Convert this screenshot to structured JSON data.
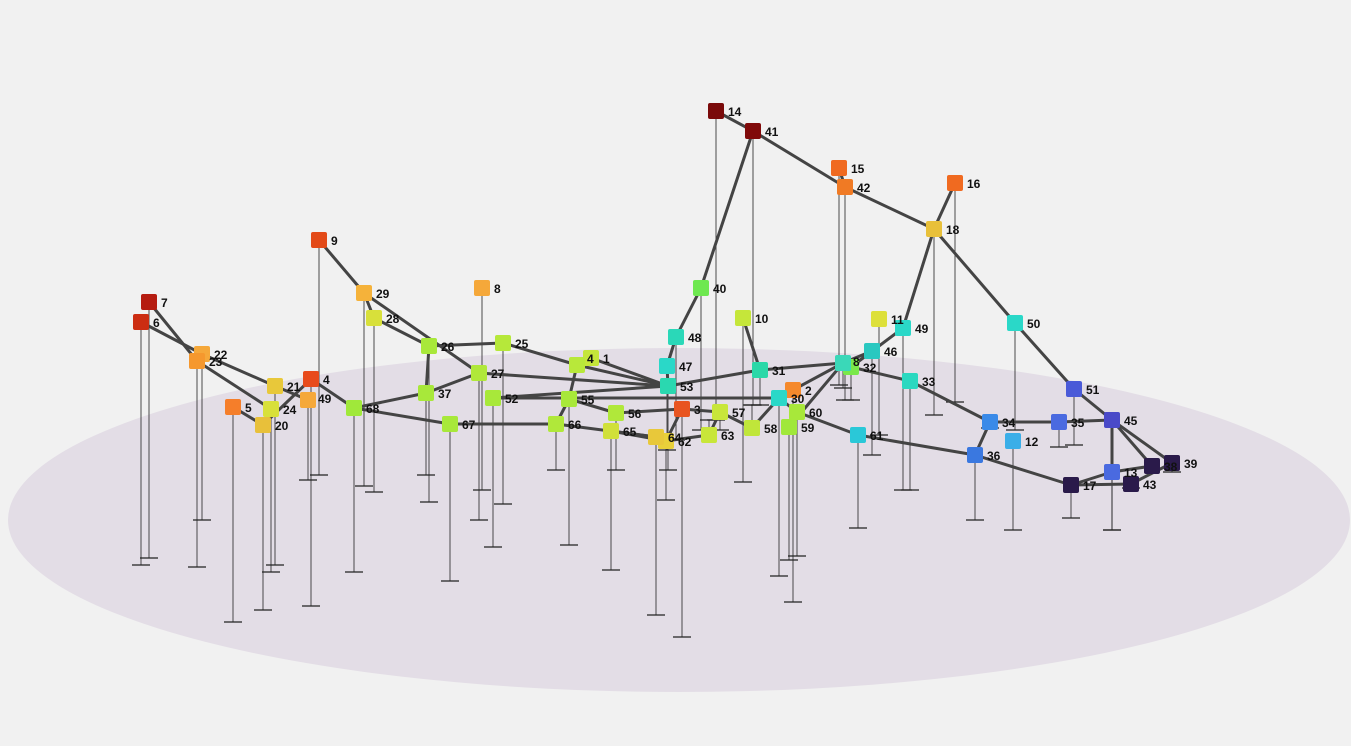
{
  "graph": {
    "nodes": [
      {
        "id": "1",
        "color": "#c5e63a",
        "drop": "false"
      },
      {
        "id": "2",
        "color": "#f5892c",
        "drop": "true"
      },
      {
        "id": "3",
        "color": "#e85420",
        "drop": "true"
      },
      {
        "id": "4",
        "color": "#e84b1c",
        "drop": "true"
      },
      {
        "id": "5",
        "color": "#f57e2a",
        "drop": "true"
      },
      {
        "id": "6",
        "color": "#cc2d12",
        "drop": "true"
      },
      {
        "id": "7",
        "color": "#b51c10",
        "drop": "true"
      },
      {
        "id": "8",
        "color": "#f5a83a",
        "drop": "true"
      },
      {
        "id": "9",
        "color": "#e34a18",
        "drop": "true"
      },
      {
        "id": "10",
        "color": "#c5e63a",
        "drop": "true"
      },
      {
        "id": "11",
        "color": "#dde03a",
        "drop": "true"
      },
      {
        "id": "12",
        "color": "#3aaee8",
        "drop": "true"
      },
      {
        "id": "13",
        "color": "#4a6ae0",
        "drop": "true"
      },
      {
        "id": "14",
        "color": "#7a0a0a",
        "drop": "true"
      },
      {
        "id": "15",
        "color": "#f06a20",
        "drop": "true"
      },
      {
        "id": "16",
        "color": "#f06a20",
        "drop": "true"
      },
      {
        "id": "17",
        "color": "#2a1a4a",
        "drop": "true"
      },
      {
        "id": "18",
        "color": "#e8c03a",
        "drop": "true"
      },
      {
        "id": "20",
        "color": "#e8c03a",
        "drop": "true"
      },
      {
        "id": "21",
        "color": "#e8c83a",
        "drop": "true"
      },
      {
        "id": "22",
        "color": "#f5a83a",
        "drop": "true"
      },
      {
        "id": "23",
        "color": "#f5982e",
        "drop": "true"
      },
      {
        "id": "24",
        "color": "#d8e03a",
        "drop": "true"
      },
      {
        "id": "25",
        "color": "#b6e83a",
        "drop": "true"
      },
      {
        "id": "26",
        "color": "#a8e83a",
        "drop": "true"
      },
      {
        "id": "27",
        "color": "#b0e83a",
        "drop": "true"
      },
      {
        "id": "28",
        "color": "#d8e03a",
        "drop": "true"
      },
      {
        "id": "29",
        "color": "#f5b23a",
        "drop": "true"
      },
      {
        "id": "30",
        "color": "#2ad8c8",
        "drop": "true"
      },
      {
        "id": "31",
        "color": "#2ad8a8",
        "drop": "true"
      },
      {
        "id": "32",
        "color": "#7ae84a",
        "drop": "true"
      },
      {
        "id": "33",
        "color": "#2ad8c0",
        "drop": "true"
      },
      {
        "id": "34",
        "color": "#3a8ae8",
        "drop": "true"
      },
      {
        "id": "36",
        "color": "#3a78e0",
        "drop": "true"
      },
      {
        "id": "37",
        "color": "#a8e83a",
        "drop": "true"
      },
      {
        "id": "38",
        "color": "#2a1a4a",
        "drop": "false"
      },
      {
        "id": "39",
        "color": "#2a1a4a",
        "drop": "true"
      },
      {
        "id": "40",
        "color": "#6ee850",
        "drop": "true"
      },
      {
        "id": "41",
        "color": "#800a0a",
        "drop": "true"
      },
      {
        "id": "42",
        "color": "#f07a24",
        "drop": "true"
      },
      {
        "id": "43",
        "color": "#2a1a4a",
        "drop": "true"
      },
      {
        "id": "45",
        "color": "#4a4ac8",
        "drop": "true"
      },
      {
        "id": "46",
        "color": "#2ac8c0",
        "drop": "true"
      },
      {
        "id": "47",
        "color": "#2ad8c8",
        "drop": "true"
      },
      {
        "id": "48",
        "color": "#2ad8b8",
        "drop": "true"
      },
      {
        "id": "49",
        "color": "#2ad8c8",
        "drop": "true"
      },
      {
        "id": "50",
        "color": "#2ad8c8",
        "drop": "true"
      },
      {
        "id": "51",
        "color": "#4a5ad8",
        "drop": "true"
      },
      {
        "id": "52",
        "color": "#a8e83a",
        "drop": "true"
      },
      {
        "id": "53",
        "color": "#2ad8b0",
        "drop": "true"
      },
      {
        "id": "54",
        "color": "#b8e83a",
        "drop": "false"
      },
      {
        "id": "55",
        "color": "#a8e83a",
        "drop": "true"
      },
      {
        "id": "56",
        "color": "#b0e83a",
        "drop": "true"
      },
      {
        "id": "57",
        "color": "#c8e63a",
        "drop": "true"
      },
      {
        "id": "58",
        "color": "#c0e63a",
        "drop": "true"
      },
      {
        "id": "59",
        "color": "#a0e83a",
        "drop": "true"
      },
      {
        "id": "60",
        "color": "#a8e83a",
        "drop": "true"
      },
      {
        "id": "61",
        "color": "#2ac8d8",
        "drop": "true"
      },
      {
        "id": "62",
        "color": "#e8d03a",
        "drop": "true"
      },
      {
        "id": "63",
        "color": "#c8e63a",
        "drop": "true"
      },
      {
        "id": "64",
        "color": "#e8c83a",
        "drop": "true"
      },
      {
        "id": "65",
        "color": "#d0e03a",
        "drop": "true"
      },
      {
        "id": "66",
        "color": "#b0e83a",
        "drop": "true"
      },
      {
        "id": "67",
        "color": "#a8e83a",
        "drop": "true"
      },
      {
        "id": "68",
        "color": "#a0e83a",
        "drop": "true"
      },
      {
        "id": "69",
        "color": "#f5a83a",
        "drop": "true"
      },
      {
        "id": "S8",
        "color": "#3ad8b8",
        "drop": "true"
      },
      {
        "id": "S35",
        "color": "#4a6ae0",
        "drop": "true"
      }
    ],
    "labels": {
      "1": "1",
      "2": "2",
      "3": "3",
      "4": "4",
      "5": "5",
      "6": "6",
      "7": "7",
      "8": "8",
      "9": "9",
      "10": "10",
      "11": "11",
      "12": "12",
      "13": "13",
      "14": "14",
      "15": "15",
      "16": "16",
      "17": "17",
      "18": "18",
      "20": "20",
      "21": "21",
      "22": "22",
      "23": "23",
      "24": "24",
      "25": "25",
      "26": "26",
      "27": "27",
      "28": "28",
      "29": "29",
      "30": "30",
      "31": "31",
      "32": "32",
      "33": "33",
      "34": "34",
      "36": "36",
      "37": "37",
      "38": "38",
      "39": "39",
      "40": "40",
      "41": "41",
      "42": "42",
      "43": "43",
      "45": "45",
      "46": "46",
      "47": "47",
      "48": "48",
      "49": "49",
      "50": "50",
      "51": "51",
      "52": "52",
      "53": "53",
      "54": "4",
      "55": "55",
      "56": "56",
      "57": "57",
      "58": "58",
      "59": "59",
      "60": "60",
      "61": "61",
      "62": "62",
      "63": "63",
      "64": "64",
      "65": "65",
      "66": "66",
      "67": "67",
      "68": "68",
      "69": "49",
      "S8": "8",
      "S35": "35"
    },
    "edges": [
      [
        "14",
        "41"
      ],
      [
        "41",
        "40"
      ],
      [
        "41",
        "42"
      ],
      [
        "15",
        "42"
      ],
      [
        "42",
        "18"
      ],
      [
        "16",
        "18"
      ],
      [
        "18",
        "49"
      ],
      [
        "18",
        "50"
      ],
      [
        "50",
        "51"
      ],
      [
        "51",
        "45"
      ],
      [
        "45",
        "39"
      ],
      [
        "45",
        "38"
      ],
      [
        "45",
        "13"
      ],
      [
        "35",
        "45"
      ],
      [
        "35",
        "34"
      ],
      [
        "34",
        "36"
      ],
      [
        "36",
        "61"
      ],
      [
        "36",
        "17"
      ],
      [
        "17",
        "13"
      ],
      [
        "17",
        "43"
      ],
      [
        "43",
        "39"
      ],
      [
        "13",
        "38"
      ],
      [
        "40",
        "48"
      ],
      [
        "48",
        "47"
      ],
      [
        "47",
        "53"
      ],
      [
        "53",
        "31"
      ],
      [
        "53",
        "1"
      ],
      [
        "31",
        "S8"
      ],
      [
        "S8",
        "46"
      ],
      [
        "46",
        "32"
      ],
      [
        "32",
        "49"
      ],
      [
        "32",
        "33"
      ],
      [
        "33",
        "34"
      ],
      [
        "10",
        "31"
      ],
      [
        "S8",
        "2"
      ],
      [
        "2",
        "30"
      ],
      [
        "30",
        "60"
      ],
      [
        "60",
        "61"
      ],
      [
        "30",
        "58"
      ],
      [
        "58",
        "57"
      ],
      [
        "57",
        "63"
      ],
      [
        "7",
        "23"
      ],
      [
        "6",
        "22"
      ],
      [
        "22",
        "21"
      ],
      [
        "23",
        "24"
      ],
      [
        "21",
        "69"
      ],
      [
        "24",
        "20"
      ],
      [
        "5",
        "20"
      ],
      [
        "20",
        "4"
      ],
      [
        "4",
        "68"
      ],
      [
        "9",
        "29"
      ],
      [
        "29",
        "28"
      ],
      [
        "29",
        "27"
      ],
      [
        "28",
        "26"
      ],
      [
        "26",
        "25"
      ],
      [
        "25",
        "54"
      ],
      [
        "26",
        "37"
      ],
      [
        "37",
        "68"
      ],
      [
        "37",
        "27"
      ],
      [
        "27",
        "53"
      ],
      [
        "68",
        "67"
      ],
      [
        "67",
        "66"
      ],
      [
        "66",
        "55"
      ],
      [
        "55",
        "54"
      ],
      [
        "55",
        "56"
      ],
      [
        "56",
        "3"
      ],
      [
        "3",
        "62"
      ],
      [
        "62",
        "63"
      ],
      [
        "66",
        "64"
      ],
      [
        "64",
        "65"
      ],
      [
        "65",
        "62"
      ],
      [
        "52",
        "53"
      ],
      [
        "52",
        "30"
      ],
      [
        "54",
        "53"
      ],
      [
        "3",
        "57"
      ],
      [
        "59",
        "60"
      ],
      [
        "S8",
        "59"
      ]
    ]
  }
}
